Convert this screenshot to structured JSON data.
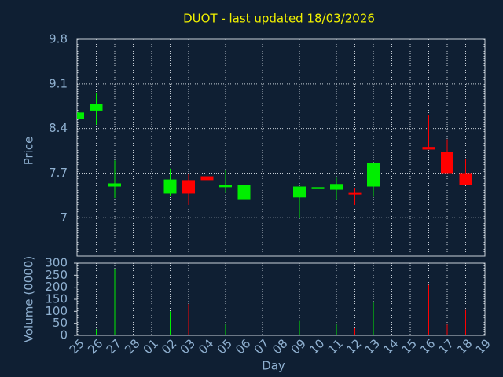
{
  "chart_data": {
    "type": "candlestick",
    "title": "DUOT - last updated 18/03/2026",
    "ylabel": "Price",
    "y2label": "Volume (0000)",
    "xlabel": "Day",
    "categories": [
      "25",
      "26",
      "27",
      "28",
      "01",
      "02",
      "03",
      "04",
      "05",
      "06",
      "07",
      "08",
      "09",
      "10",
      "11",
      "12",
      "13",
      "14",
      "15",
      "16",
      "17",
      "18",
      "19"
    ],
    "open": [
      8.55,
      8.68,
      7.49,
      null,
      null,
      7.38,
      7.59,
      7.65,
      7.48,
      7.28,
      null,
      null,
      7.32,
      7.45,
      7.44,
      7.39,
      7.49,
      null,
      null,
      8.11,
      8.03,
      7.7,
      null
    ],
    "high": [
      8.65,
      8.95,
      7.9,
      null,
      null,
      7.77,
      7.69,
      8.13,
      7.75,
      7.52,
      null,
      null,
      7.49,
      7.71,
      7.64,
      7.47,
      7.86,
      null,
      null,
      8.61,
      8.23,
      7.92,
      null
    ],
    "low": [
      8.55,
      8.46,
      7.31,
      null,
      null,
      7.34,
      7.2,
      7.55,
      7.39,
      7.28,
      null,
      null,
      7.0,
      7.31,
      7.28,
      7.2,
      7.33,
      null,
      null,
      8.07,
      7.7,
      7.52,
      null
    ],
    "close": [
      8.65,
      8.78,
      7.54,
      null,
      null,
      7.6,
      7.38,
      7.59,
      7.52,
      7.52,
      null,
      null,
      7.49,
      7.48,
      7.53,
      7.38,
      7.86,
      null,
      null,
      8.07,
      7.7,
      7.52,
      null
    ],
    "volume": [
      0,
      25,
      275,
      null,
      null,
      100,
      130,
      75,
      45,
      105,
      null,
      null,
      60,
      40,
      45,
      30,
      140,
      null,
      null,
      210,
      45,
      105,
      null
    ],
    "up_color": "#00ee00",
    "down_color": "#ff0000",
    "ylim": [
      6.4,
      9.8
    ],
    "yticks": [
      9.8,
      9.1,
      8.4,
      7.7,
      7
    ],
    "y2lim": [
      0,
      300
    ],
    "y2ticks": [
      0,
      50,
      100,
      150,
      200,
      250,
      300
    ],
    "grid": true
  }
}
